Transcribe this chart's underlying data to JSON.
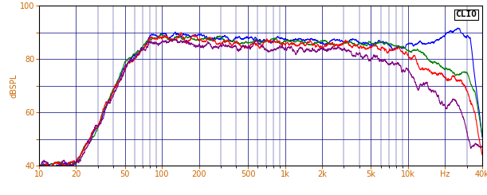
{
  "title": "CLIO",
  "ylabel": "dBSPL",
  "xlabel_ticks": [
    10,
    20,
    50,
    100,
    200,
    500,
    1000,
    2000,
    5000,
    10000,
    20000,
    40000
  ],
  "xlabel_labels": [
    "10",
    "20",
    "50",
    "100",
    "200",
    "500",
    "1k",
    "2k",
    "5k",
    "10k",
    "Hz",
    "40k"
  ],
  "xmin": 10,
  "xmax": 40000,
  "ymin": 40,
  "ymax": 100,
  "yticks": [
    40,
    50,
    60,
    70,
    80,
    90,
    100
  ],
  "background_color": "#ffffff",
  "grid_color": "#000080",
  "line_colors": {
    "0deg": "#0000ff",
    "15deg": "#008000",
    "30deg": "#ff0000",
    "45deg": "#800080"
  },
  "line_width": 0.8
}
